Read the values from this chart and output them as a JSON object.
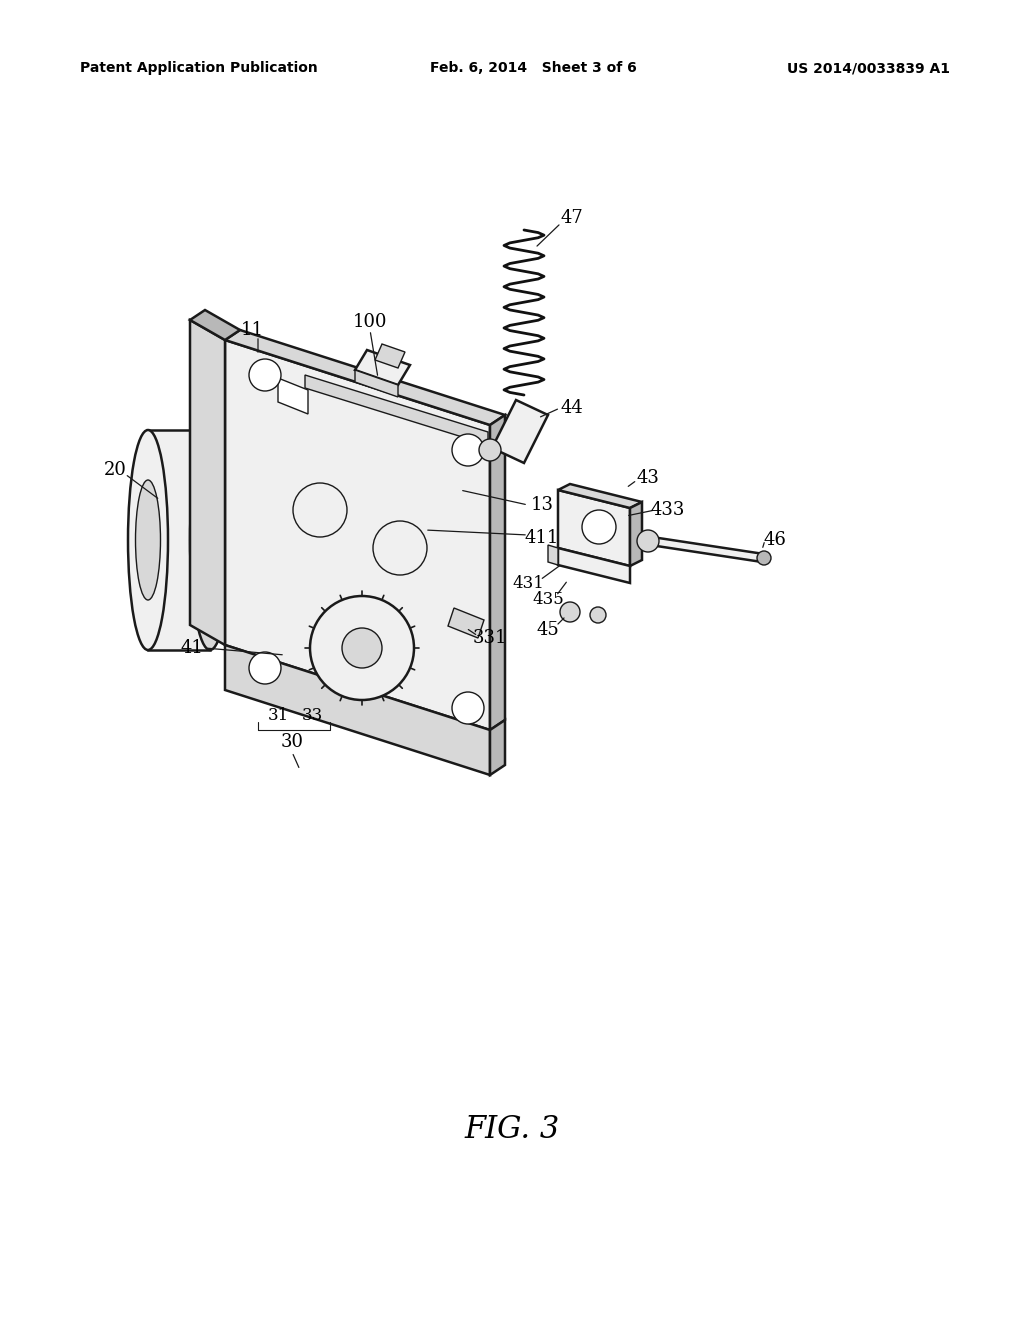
{
  "background_color": "#ffffff",
  "header_left": "Patent Application Publication",
  "header_center": "Feb. 6, 2014   Sheet 3 of 6",
  "header_right": "US 2014/0033839 A1",
  "figure_label": "FIG. 3",
  "line_color": "#1a1a1a",
  "fill_light": "#f0f0f0",
  "fill_mid": "#d8d8d8",
  "fill_dark": "#b8b8b8"
}
